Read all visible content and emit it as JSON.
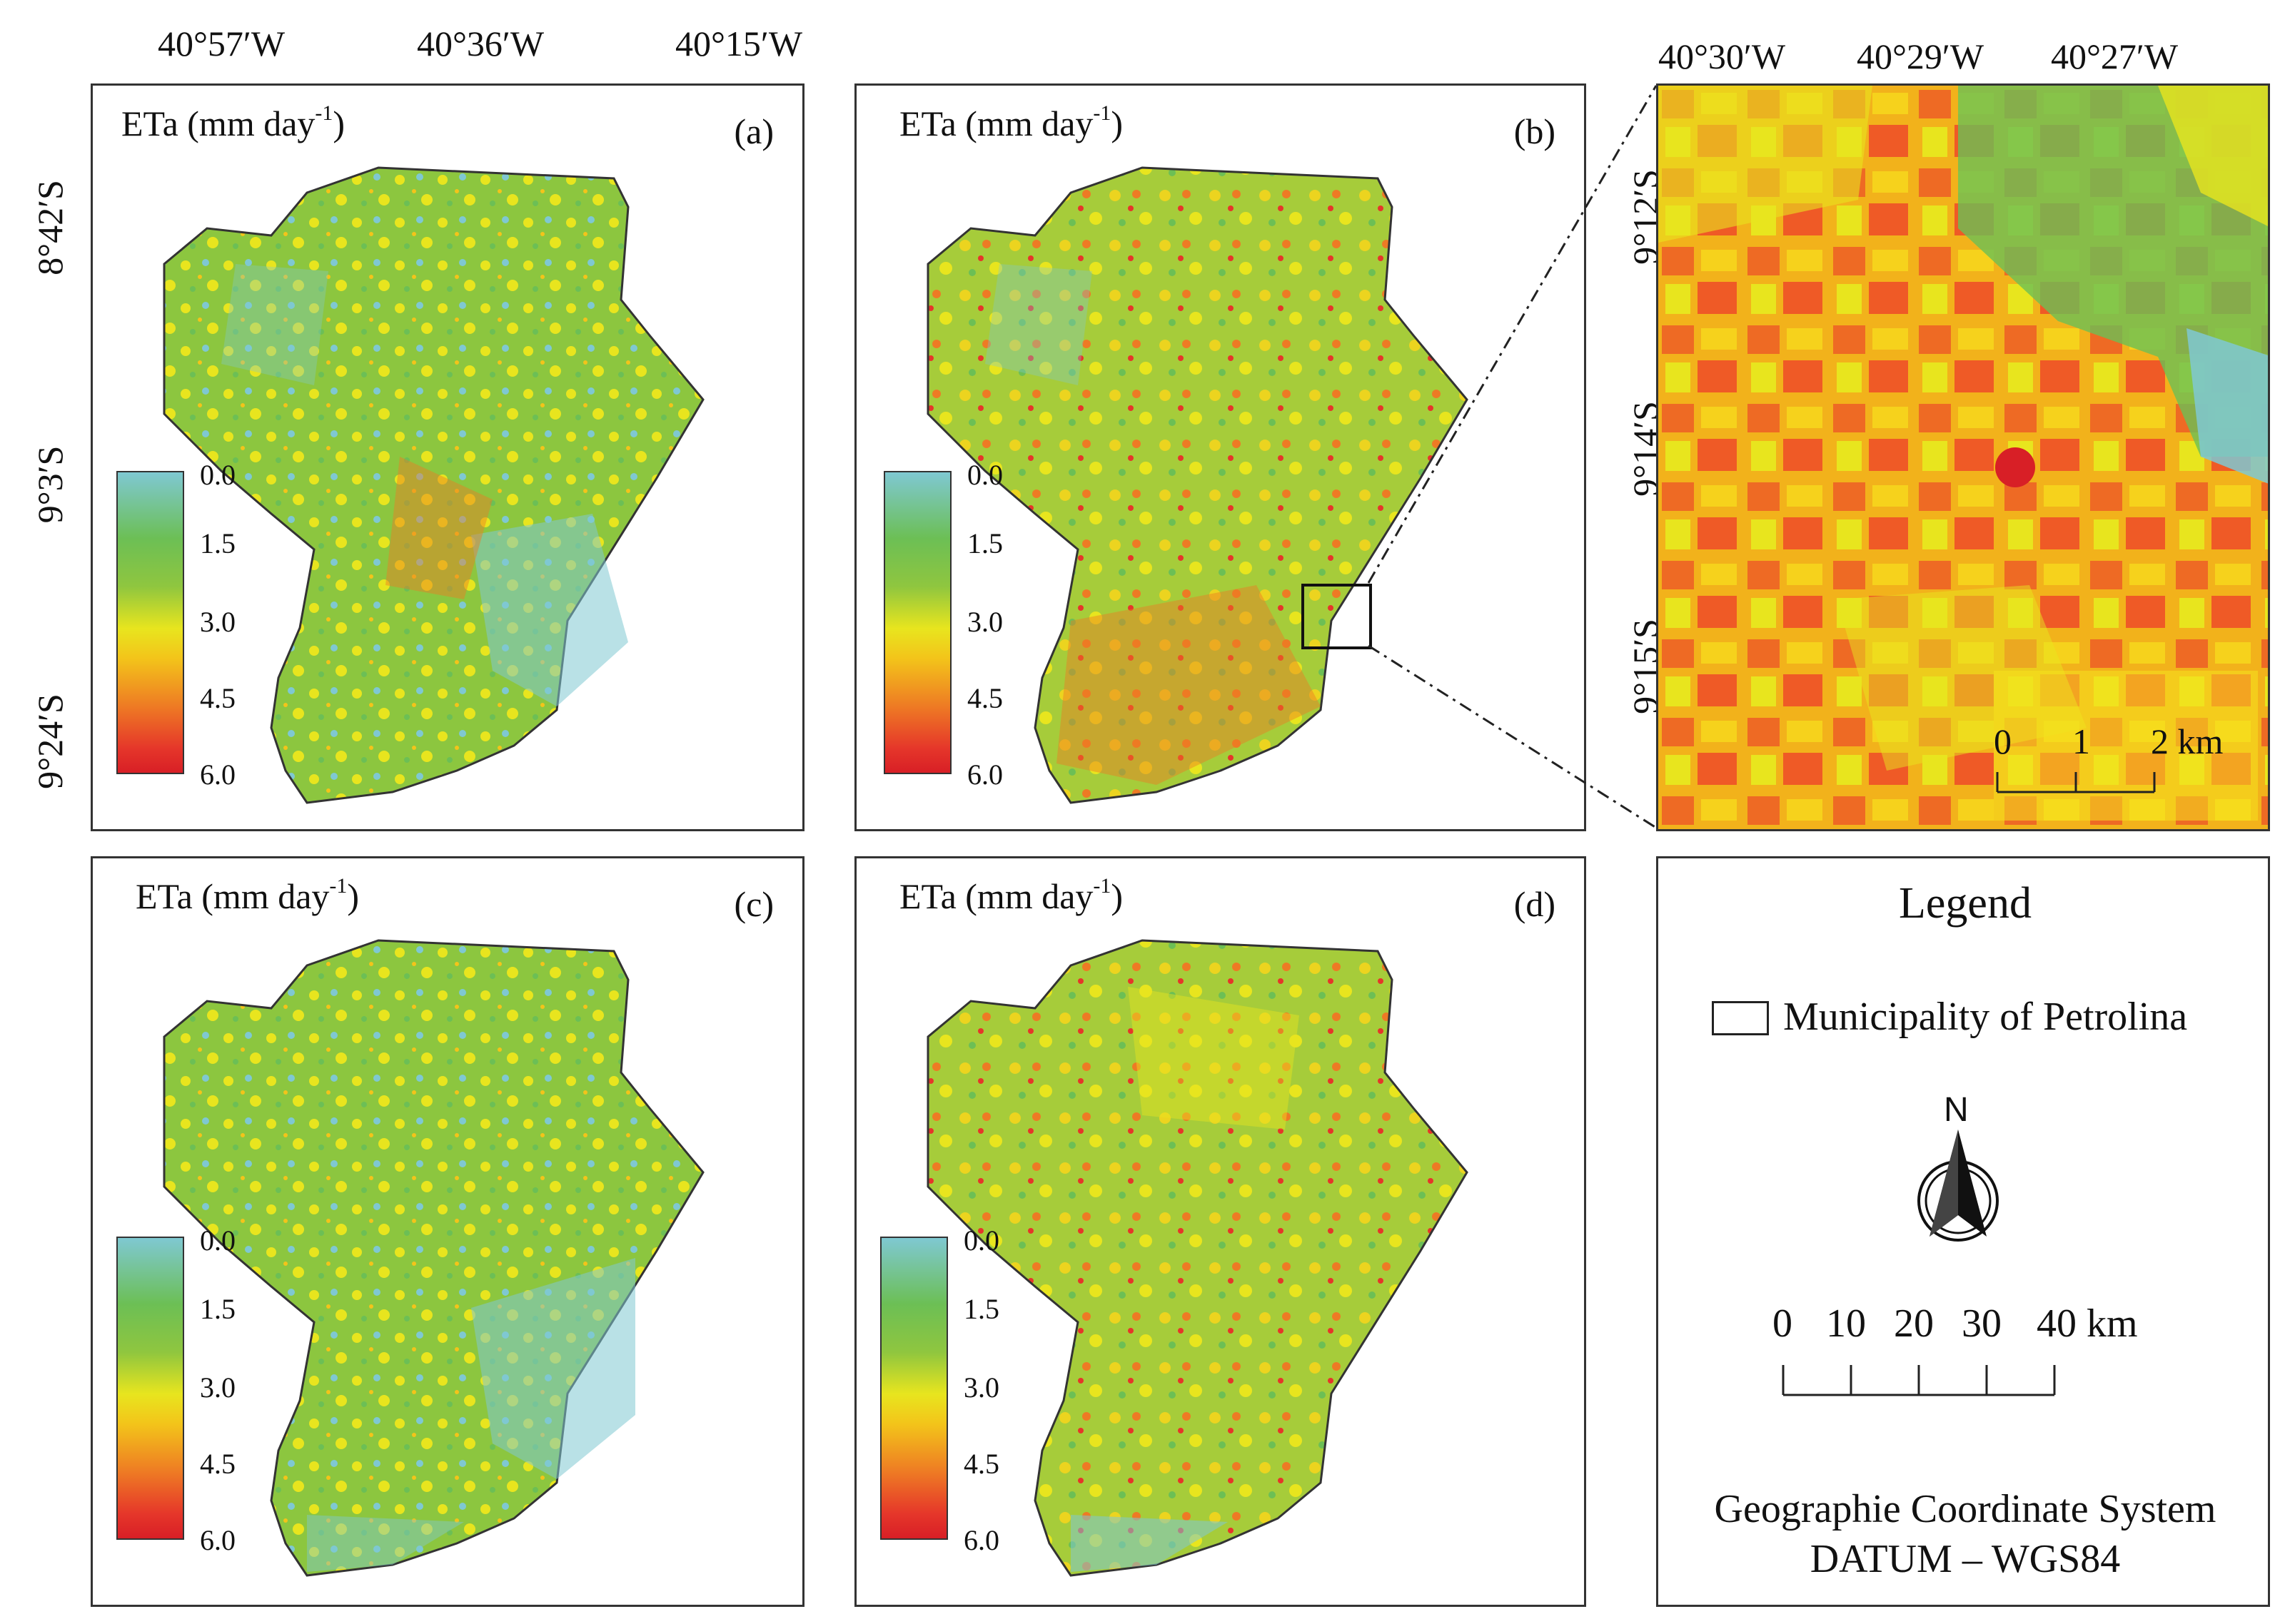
{
  "top_ticks_left": [
    "40°57′W",
    "40°36′W",
    "40°15′W"
  ],
  "top_ticks_right": [
    "40°30′W",
    "40°29′W",
    "40°27′W"
  ],
  "left_ticks_main": [
    "8°42′S",
    "9°3′S",
    "9°24′S"
  ],
  "left_ticks_zoom": [
    "9°12′S",
    "9°14′S",
    "9°15′S"
  ],
  "panels": [
    {
      "label": "(a)",
      "title": "ETa (mm day",
      "title_sup": "-1",
      "title_close": ")"
    },
    {
      "label": "(b)",
      "title": "ETa (mm day",
      "title_sup": "-1",
      "title_close": ")"
    },
    {
      "label": "(c)",
      "title": "ETa (mm day",
      "title_sup": "-1",
      "title_close": ")"
    },
    {
      "label": "(d)",
      "title": "ETa (mm day",
      "title_sup": "-1",
      "title_close": ")"
    }
  ],
  "colorbar_ticks": [
    "0.0",
    "1.5",
    "3.0",
    "4.5",
    "6.0"
  ],
  "colorbar_colors": [
    "#7fc8d2",
    "#6cbf55",
    "#e8e51e",
    "#ee7a24",
    "#d81f26"
  ],
  "zoom_scale": {
    "ticks": [
      "0",
      "1",
      "2 km"
    ]
  },
  "legend": {
    "title": "Legend",
    "item": "Municipality of Petrolina",
    "north": "N",
    "scale_ticks": [
      "0",
      "10",
      "20",
      "30",
      "40 km"
    ],
    "crs_line1": "Geographie Coordinate System",
    "crs_line2": "DATUM – WGS84"
  }
}
